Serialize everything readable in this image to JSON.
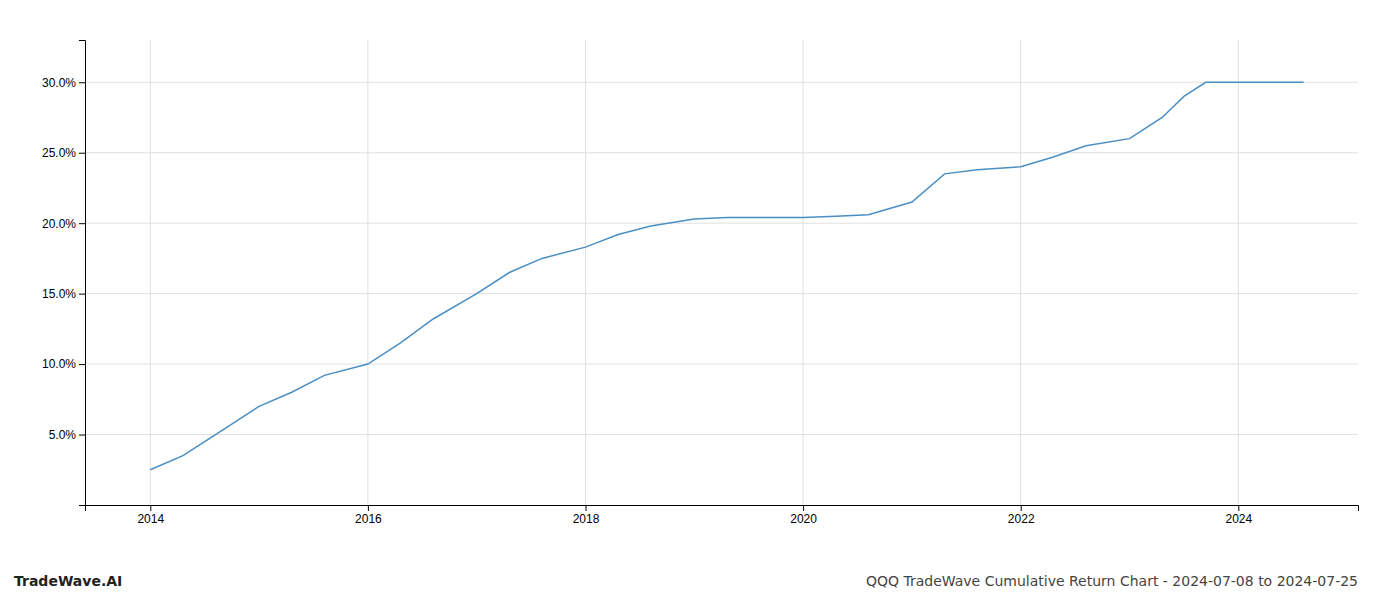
{
  "chart_data": {
    "type": "line",
    "title": "QQQ TradeWave Cumulative Return Chart - 2024-07-08 to 2024-07-25",
    "annotations": [
      "TradeWave.AI"
    ],
    "x": [
      2014.0,
      2014.3,
      2014.6,
      2015.0,
      2015.3,
      2015.6,
      2016.0,
      2016.3,
      2016.6,
      2017.0,
      2017.3,
      2017.6,
      2018.0,
      2018.3,
      2018.6,
      2019.0,
      2019.3,
      2019.6,
      2020.0,
      2020.3,
      2020.6,
      2021.0,
      2021.3,
      2021.6,
      2022.0,
      2022.3,
      2022.6,
      2023.0,
      2023.3,
      2023.5,
      2023.7,
      2024.0,
      2024.3,
      2024.6
    ],
    "values": [
      2.5,
      3.5,
      5.0,
      7.0,
      8.0,
      9.2,
      10.0,
      11.5,
      13.2,
      15.0,
      16.5,
      17.5,
      18.3,
      19.2,
      19.8,
      20.3,
      20.4,
      20.4,
      20.4,
      20.5,
      20.6,
      21.5,
      23.5,
      23.8,
      24.0,
      24.7,
      25.5,
      26.0,
      27.5,
      29.0,
      30.0,
      30.0,
      30.0,
      30.0
    ],
    "color": "#4a8fc4",
    "xlim": [
      2013.4,
      2025.1
    ],
    "ylim": [
      0,
      33
    ],
    "xticks": [
      2014,
      2016,
      2018,
      2020,
      2022,
      2024
    ],
    "yticks": [
      {
        "value": 5.0,
        "label": "5.0%"
      },
      {
        "value": 10.0,
        "label": "10.0%"
      },
      {
        "value": 15.0,
        "label": "15.0%"
      },
      {
        "value": 20.0,
        "label": "20.0%"
      },
      {
        "value": 25.0,
        "label": "25.0%"
      },
      {
        "value": 30.0,
        "label": "30.0%"
      }
    ],
    "grid": true
  }
}
